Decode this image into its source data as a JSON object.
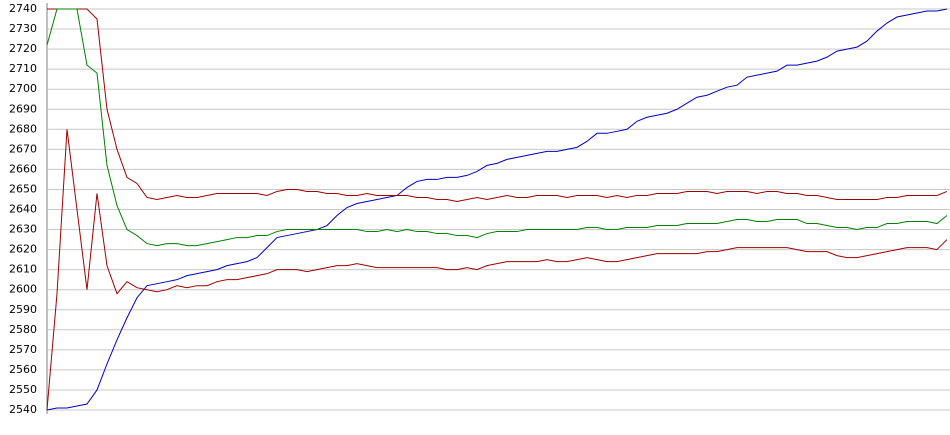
{
  "chart_data": {
    "type": "line",
    "ylim": [
      2540,
      2740
    ],
    "yticks": [
      2540,
      2550,
      2560,
      2570,
      2580,
      2590,
      2600,
      2610,
      2620,
      2630,
      2640,
      2650,
      2660,
      2670,
      2680,
      2690,
      2700,
      2710,
      2720,
      2730,
      2740
    ],
    "grid": true,
    "series": [
      {
        "color": "#0000c0",
        "values": [
          2540,
          2541,
          2541,
          2542,
          2543,
          2550,
          2563,
          2575,
          2586,
          2596,
          2602,
          2603,
          2604,
          2605,
          2607,
          2608,
          2609,
          2610,
          2612,
          2613,
          2614,
          2616,
          2621,
          2626,
          2627,
          2628,
          2629,
          2630,
          2632,
          2637,
          2641,
          2643,
          2644,
          2645,
          2646,
          2647,
          2651,
          2654,
          2655,
          2655,
          2656,
          2656,
          2657,
          2659,
          2662,
          2663,
          2665,
          2666,
          2667,
          2668,
          2669,
          2669,
          2670,
          2671,
          2674,
          2678,
          2678,
          2679,
          2680,
          2684,
          2686,
          2687,
          2688,
          2690,
          2693,
          2696,
          2697,
          2699,
          2701,
          2702,
          2706,
          2707,
          2708,
          2709,
          2712,
          2712,
          2713,
          2714,
          2716,
          2719,
          2720,
          2721,
          2724,
          2729,
          2733,
          2736,
          2737,
          2738,
          2739,
          2739,
          2740
        ]
      },
      {
        "color": "#a00000",
        "values": [
          2740,
          2740,
          2740,
          2740,
          2740,
          2735,
          2690,
          2670,
          2656,
          2653,
          2646,
          2645,
          2646,
          2647,
          2646,
          2646,
          2647,
          2648,
          2648,
          2648,
          2648,
          2648,
          2647,
          2649,
          2650,
          2650,
          2649,
          2649,
          2648,
          2648,
          2647,
          2647,
          2648,
          2647,
          2647,
          2647,
          2647,
          2646,
          2646,
          2645,
          2645,
          2644,
          2645,
          2646,
          2645,
          2646,
          2647,
          2646,
          2646,
          2647,
          2647,
          2647,
          2646,
          2647,
          2647,
          2647,
          2646,
          2647,
          2646,
          2647,
          2647,
          2648,
          2648,
          2648,
          2649,
          2649,
          2649,
          2648,
          2649,
          2649,
          2649,
          2648,
          2649,
          2649,
          2648,
          2648,
          2647,
          2647,
          2646,
          2645,
          2645,
          2645,
          2645,
          2645,
          2646,
          2646,
          2647,
          2647,
          2647,
          2647,
          2649
        ]
      },
      {
        "color": "#008000",
        "values": [
          2722,
          2740,
          2740,
          2740,
          2712,
          2708,
          2662,
          2642,
          2630,
          2627,
          2623,
          2622,
          2623,
          2623,
          2622,
          2622,
          2623,
          2624,
          2625,
          2626,
          2626,
          2627,
          2627,
          2629,
          2630,
          2630,
          2630,
          2630,
          2630,
          2630,
          2630,
          2630,
          2629,
          2629,
          2630,
          2629,
          2630,
          2629,
          2629,
          2628,
          2628,
          2627,
          2627,
          2626,
          2628,
          2629,
          2629,
          2629,
          2630,
          2630,
          2630,
          2630,
          2630,
          2630,
          2631,
          2631,
          2630,
          2630,
          2631,
          2631,
          2631,
          2632,
          2632,
          2632,
          2633,
          2633,
          2633,
          2633,
          2634,
          2635,
          2635,
          2634,
          2634,
          2635,
          2635,
          2635,
          2633,
          2633,
          2632,
          2631,
          2631,
          2630,
          2631,
          2631,
          2633,
          2633,
          2634,
          2634,
          2634,
          2633,
          2637
        ]
      },
      {
        "color": "#a00000",
        "values": [
          2540,
          2598,
          2680,
          2640,
          2600,
          2648,
          2612,
          2598,
          2604,
          2601,
          2600,
          2599,
          2600,
          2602,
          2601,
          2602,
          2602,
          2604,
          2605,
          2605,
          2606,
          2607,
          2608,
          2610,
          2610,
          2610,
          2609,
          2610,
          2611,
          2612,
          2612,
          2613,
          2612,
          2611,
          2611,
          2611,
          2611,
          2611,
          2611,
          2611,
          2610,
          2610,
          2611,
          2610,
          2612,
          2613,
          2614,
          2614,
          2614,
          2614,
          2615,
          2614,
          2614,
          2615,
          2616,
          2615,
          2614,
          2614,
          2615,
          2616,
          2617,
          2618,
          2618,
          2618,
          2618,
          2618,
          2619,
          2619,
          2620,
          2621,
          2621,
          2621,
          2621,
          2621,
          2621,
          2620,
          2619,
          2619,
          2619,
          2617,
          2616,
          2616,
          2617,
          2618,
          2619,
          2620,
          2621,
          2621,
          2621,
          2620,
          2625
        ]
      }
    ]
  }
}
